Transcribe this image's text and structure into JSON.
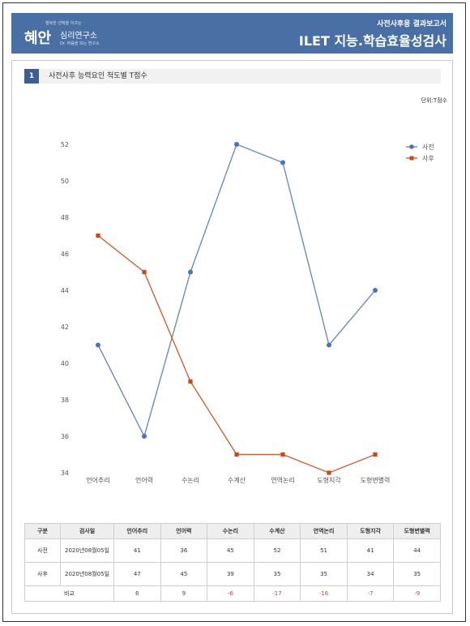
{
  "header": {
    "logo_tagline": "행복한 선택을 이끄는",
    "logo_main": "혜안",
    "logo_sub": "심리연구소",
    "logo_sub2": "Dr. 마음을 보는 연구소",
    "report_title": "사전사후용 결과보고서",
    "exam_title": "ILET 지능.학습효율성검사",
    "color": "#4a6fa5"
  },
  "section": {
    "number": "1",
    "title": "사전사후 능력요인 척도별 T점수",
    "unit": "단위:T점수"
  },
  "chart_data": {
    "type": "line",
    "categories": [
      "언어추리",
      "언어력",
      "수논리",
      "수계산",
      "연역논리",
      "도형지각",
      "도형변별력"
    ],
    "series": [
      {
        "name": "사전",
        "values": [
          41,
          36,
          45,
          52,
          51,
          41,
          44
        ],
        "color": "#4a72c4",
        "line_color": "#6a8db9"
      },
      {
        "name": "사후",
        "values": [
          47,
          45,
          39,
          35,
          35,
          34,
          35
        ],
        "color": "#c84a1c",
        "line_color": "#c8643a"
      }
    ],
    "ylim": [
      34,
      52
    ],
    "yticks": [
      34,
      36,
      38,
      40,
      42,
      44,
      46,
      48,
      50,
      52
    ],
    "grid": false,
    "legend_position": "right"
  },
  "table": {
    "headers": [
      "구분",
      "검사일",
      "언어추리",
      "언어력",
      "수논리",
      "수계산",
      "연역논리",
      "도형지각",
      "도형변별력"
    ],
    "rows": [
      {
        "label": "사전",
        "date": "2020년08월05일",
        "values": [
          "41",
          "36",
          "45",
          "52",
          "51",
          "41",
          "44"
        ]
      },
      {
        "label": "사후",
        "date": "2020년08월05일",
        "values": [
          "47",
          "45",
          "39",
          "35",
          "35",
          "34",
          "35"
        ]
      }
    ],
    "remark_label": "비교",
    "remarks": [
      "6",
      "9",
      "-6",
      "-17",
      "-16",
      "-7",
      "-9"
    ]
  }
}
